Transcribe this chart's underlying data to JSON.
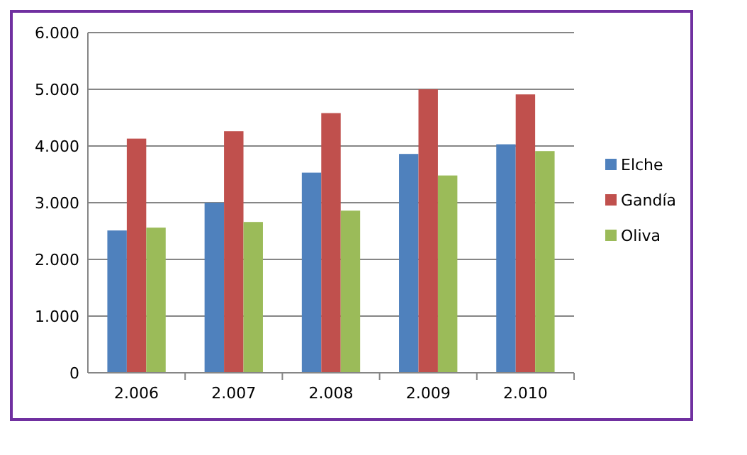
{
  "chart_data": {
    "type": "bar",
    "categories": [
      "2.006",
      "2.007",
      "2.008",
      "2.009",
      "2.010"
    ],
    "series": [
      {
        "name": "Elche",
        "color": "#4f81bd",
        "values": [
          2510,
          3000,
          3530,
          3860,
          4030
        ]
      },
      {
        "name": "Gandía",
        "color": "#c0504d",
        "values": [
          4130,
          4260,
          4580,
          5000,
          4910
        ]
      },
      {
        "name": "Oliva",
        "color": "#9bbb59",
        "values": [
          2560,
          2660,
          2860,
          3480,
          3910
        ]
      }
    ],
    "ylim": [
      0,
      6000
    ],
    "yticks": [
      0,
      {
        "value": 1000,
        "label": "1.000"
      },
      {
        "value": 2000,
        "label": "2.000"
      },
      {
        "value": 3000,
        "label": "3.000"
      },
      {
        "value": 4000,
        "label": "4.000"
      },
      {
        "value": 5000,
        "label": "5.000"
      },
      {
        "value": 6000,
        "label": "6.000"
      }
    ],
    "grid": "y",
    "legend": "right"
  }
}
